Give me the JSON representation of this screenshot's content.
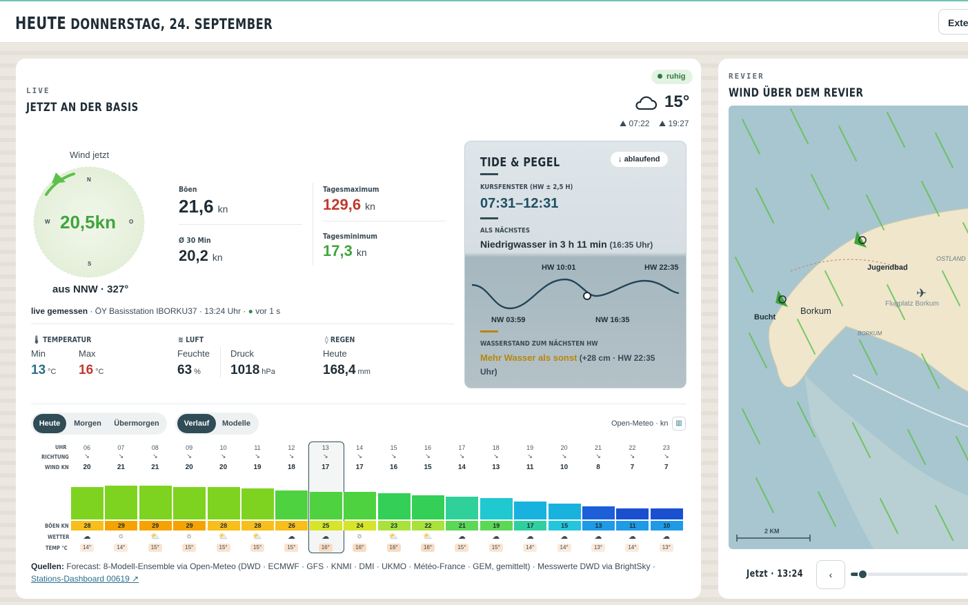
{
  "header": {
    "title": "HEUTE",
    "date": "DONNERSTAG, 24. SEPTEMBER",
    "ext_label": "Exte"
  },
  "live": {
    "eyebrow": "LIVE",
    "title": "JETZT AN DER BASIS",
    "status": "ruhig",
    "temp": "15°",
    "sunrise": "07:22",
    "sunset": "19:27",
    "compass_label": "Wind jetzt",
    "wind_now": "20,5kn",
    "wind_dir": "aus NNW · 327°",
    "wind_dir_deg": 327,
    "compass": {
      "n": "N",
      "s": "S",
      "w": "W",
      "o": "O"
    },
    "gusts_label": "Böen",
    "gusts": "21,6",
    "gusts_unit": "kn",
    "avg_label": "Ø 30 Min",
    "avg": "20,2",
    "avg_unit": "kn",
    "daymax_label": "Tagesmaximum",
    "daymax": "129,6",
    "daymax_unit": "kn",
    "daymin_label": "Tagesminimum",
    "daymin": "17,3",
    "daymin_unit": "kn",
    "measured_strong": "live gemessen",
    "measured_rest": " · ÖY Basisstation IBORKU37 · 13:24 Uhr · ",
    "measured_age": "vor 1 s"
  },
  "stats": {
    "temp_head": "TEMPERATUR",
    "min_label": "Min",
    "min": "13",
    "min_unit": "°C",
    "max_label": "Max",
    "max": "16",
    "max_unit": "°C",
    "air_head": "LUFT",
    "hum_label": "Feuchte",
    "hum": "63",
    "hum_unit": "%",
    "press_label": "Druck",
    "press": "1018",
    "press_unit": "hPa",
    "rain_head": "REGEN",
    "rain_label": "Heute",
    "rain": "168,4",
    "rain_unit": "mm"
  },
  "tide": {
    "title": "TIDE & PEGEL",
    "state": "ablaufend",
    "window_label": "KURSFENSTER (HW ± 2,5 H)",
    "window": "07:31–12:31",
    "next_label": "ALS NÄCHSTES",
    "next_text": "Niedrigwasser in 3 h 11 min",
    "next_time": "(16:35 Uhr)",
    "hw1": "HW 10:01",
    "hw2": "HW 22:35",
    "nw1": "NW 03:59",
    "nw2": "NW 16:35",
    "level_label": "WASSERSTAND ZUM NÄCHSTEN HW",
    "level_strong": "Mehr Wasser als sonst",
    "level_rest": " (+28 cm · HW 22:35 Uhr)"
  },
  "forecast": {
    "days": [
      "Heute",
      "Morgen",
      "Übermorgen"
    ],
    "views": [
      "Verlauf",
      "Modelle"
    ],
    "source_note": "Open-Meteo · kn",
    "row_labels": {
      "hour": "UHR",
      "dir": "RICHTUNG",
      "wind": "WIND KN",
      "gust": "BÖEN KN",
      "wx": "WETTER",
      "temp": "TEMP °C"
    },
    "hours": [
      "06",
      "07",
      "08",
      "09",
      "10",
      "11",
      "12",
      "13",
      "14",
      "15",
      "16",
      "17",
      "18",
      "19",
      "20",
      "21",
      "22",
      "23"
    ],
    "wind": [
      20,
      21,
      21,
      20,
      20,
      19,
      18,
      17,
      17,
      16,
      15,
      14,
      13,
      11,
      10,
      8,
      7,
      7
    ],
    "gusts": [
      28,
      29,
      29,
      29,
      28,
      28,
      26,
      25,
      24,
      23,
      22,
      21,
      19,
      17,
      15,
      13,
      11,
      10
    ],
    "weather": [
      "cloud",
      "sun",
      "partly",
      "sun",
      "partly",
      "partly",
      "cloud",
      "cloud",
      "sun",
      "partly",
      "partly",
      "cloud",
      "cloud",
      "cloud",
      "cloud",
      "cloud",
      "cloud",
      "cloud"
    ],
    "temps": [
      "14°",
      "14°",
      "15°",
      "15°",
      "15°",
      "15°",
      "15°",
      "16°",
      "16°",
      "16°",
      "16°",
      "15°",
      "15°",
      "14°",
      "14°",
      "13°",
      "14°",
      "13°"
    ],
    "dir_arrow": "↘"
  },
  "sources": {
    "label": "Quellen:",
    "text": " Forecast: 8-Modell-Ensemble via Open-Meteo (DWD · ECMWF · GFS · KNMI · DMI · UKMO · Météo-France · GEM, gemittelt) · Messwerte DWD via BrightSky · ",
    "link": "Stations-Dashboard 00619 ↗"
  },
  "revier": {
    "eyebrow": "REVIER",
    "title": "WIND ÜBER DEM REVIER",
    "labels": {
      "jugendbad": "Jugendbad",
      "borkum": "Borkum",
      "bucht": "Bucht",
      "flugplatz": "Flugplatz Borkum",
      "ostland": "OSTLAND",
      "borkum_small": "BORKUM"
    },
    "scale": "2 KM",
    "time": "Jetzt · 13:24"
  },
  "colors": {
    "accent": "#2f4c57",
    "green_text": "#3fa53b",
    "red_text": "#c0392b",
    "gold": "#b8860b"
  }
}
